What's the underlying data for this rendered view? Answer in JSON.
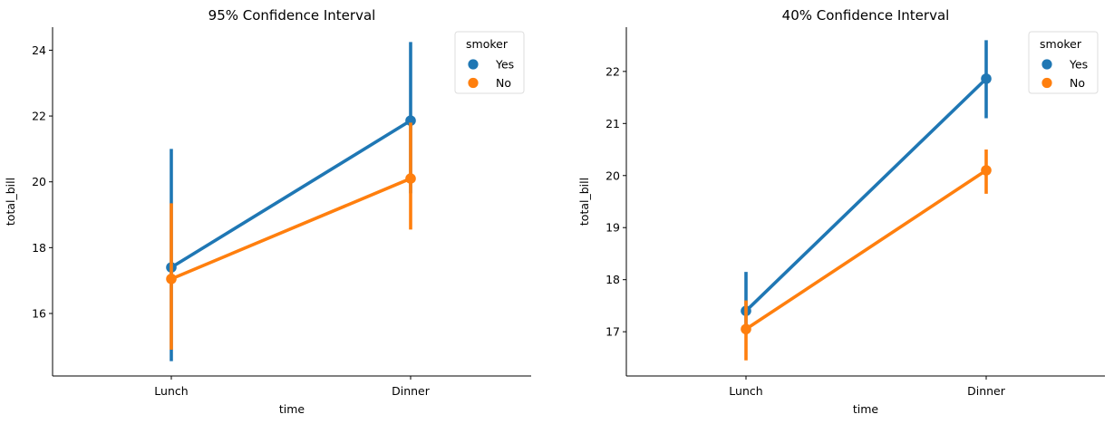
{
  "chart_data": [
    {
      "type": "line",
      "title": "95% Confidence Interval",
      "xlabel": "time",
      "ylabel": "total_bill",
      "categories": [
        "Lunch",
        "Dinner"
      ],
      "ylim": [
        14.1,
        24.7
      ],
      "yticks": [
        16,
        18,
        20,
        22,
        24
      ],
      "grid": false,
      "legend": {
        "title": "smoker",
        "placement": "top-right"
      },
      "series": [
        {
          "name": "Yes",
          "color": "#1f77b4",
          "values": [
            17.4,
            21.86
          ],
          "ci_low": [
            14.55,
            19.65
          ],
          "ci_high": [
            21.0,
            24.25
          ]
        },
        {
          "name": "No",
          "color": "#ff7f0e",
          "values": [
            17.05,
            20.1
          ],
          "ci_low": [
            14.9,
            18.55
          ],
          "ci_high": [
            19.35,
            21.8
          ]
        }
      ]
    },
    {
      "type": "line",
      "title": "40% Confidence Interval",
      "xlabel": "time",
      "ylabel": "total_bill",
      "categories": [
        "Lunch",
        "Dinner"
      ],
      "ylim": [
        16.15,
        22.85
      ],
      "yticks": [
        17,
        18,
        19,
        20,
        21,
        22
      ],
      "grid": false,
      "legend": {
        "title": "smoker",
        "placement": "top-right"
      },
      "series": [
        {
          "name": "Yes",
          "color": "#1f77b4",
          "values": [
            17.4,
            21.86
          ],
          "ci_low": [
            16.95,
            21.1
          ],
          "ci_high": [
            18.15,
            22.6
          ]
        },
        {
          "name": "No",
          "color": "#ff7f0e",
          "values": [
            17.05,
            20.1
          ],
          "ci_low": [
            16.45,
            19.65
          ],
          "ci_high": [
            17.6,
            20.5
          ]
        }
      ]
    }
  ]
}
